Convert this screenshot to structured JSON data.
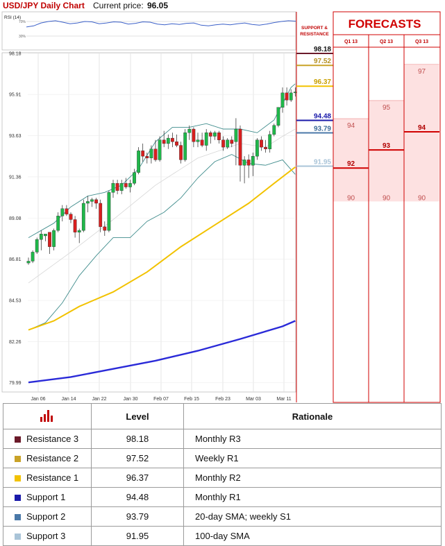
{
  "header": {
    "title": "USD/JPY Daily Chart",
    "price_label": "Current price:",
    "price_value": "96.05"
  },
  "rsi": {
    "label": "RSI (14)",
    "levels": [
      "70%",
      "30%"
    ],
    "values": [
      55,
      58,
      66,
      70,
      72,
      68,
      64,
      66,
      70,
      69,
      64,
      66,
      69,
      68,
      63,
      65,
      69,
      68,
      63,
      61,
      64,
      62,
      65,
      66,
      60,
      58,
      61,
      63,
      61,
      64,
      66,
      62,
      60,
      63,
      67,
      70,
      72,
      71
    ]
  },
  "sr_header": {
    "line1": "SUPPORT &",
    "line2": "RESISTANCE"
  },
  "forecasts": {
    "title": "FORECASTS",
    "quarters": [
      "Q1 13",
      "Q2 13",
      "Q3 13"
    ],
    "items": [
      {
        "quarter": "Q1 13",
        "high": "94",
        "mid": "92",
        "low": "90"
      },
      {
        "quarter": "Q2 13",
        "high": "95",
        "mid": "93",
        "low": "90"
      },
      {
        "quarter": "Q3 13",
        "high": "97",
        "mid": "94",
        "low": "90"
      }
    ]
  },
  "levels": [
    {
      "name": "Resistance 3",
      "value": "98.18",
      "color": "#6b1a2a",
      "rationale": "Monthly R3"
    },
    {
      "name": "Resistance 2",
      "value": "97.52",
      "color": "#c9a227",
      "rationale": "Weekly R1"
    },
    {
      "name": "Resistance 1",
      "value": "96.37",
      "color": "#f2c200",
      "rationale": "Monthly R2"
    },
    {
      "name": "Support 1",
      "value": "94.48",
      "color": "#1a1aaa",
      "rationale": "Monthly R1"
    },
    {
      "name": "Support 2",
      "value": "93.79",
      "color": "#4a78a8",
      "rationale": "20-day SMA; weekly S1"
    },
    {
      "name": "Support 3",
      "value": "91.95",
      "color": "#a9c4d8",
      "rationale": "100-day SMA"
    }
  ],
  "table": {
    "col_level": "Level",
    "col_rationale": "Rationale"
  },
  "chart_data": {
    "type": "candlestick",
    "y_ticks": [
      "98.18",
      "95.91",
      "93.63",
      "91.36",
      "89.08",
      "86.81",
      "84.53",
      "82.26",
      "79.99"
    ],
    "ylim": [
      79.99,
      98.18
    ],
    "x_ticks": [
      "Jan 06",
      "Jan 14",
      "Jan 22",
      "Jan 30",
      "Feb 07",
      "Feb 15",
      "Feb 23",
      "Mar 03",
      "Mar 11"
    ],
    "candles": [
      [
        86.6,
        86.9,
        86.5,
        86.7
      ],
      [
        86.7,
        87.3,
        86.6,
        87.2
      ],
      [
        87.2,
        88.0,
        87.1,
        87.9
      ],
      [
        87.9,
        88.4,
        87.3,
        88.2
      ],
      [
        88.1,
        88.2,
        87.8,
        88.2
      ],
      [
        88.3,
        88.3,
        87.1,
        87.5
      ],
      [
        87.5,
        88.5,
        87.3,
        88.4
      ],
      [
        88.4,
        89.4,
        88.3,
        89.2
      ],
      [
        89.2,
        89.8,
        88.9,
        89.6
      ],
      [
        89.6,
        89.8,
        89.2,
        89.3
      ],
      [
        89.3,
        89.4,
        88.8,
        89.0
      ],
      [
        89.0,
        89.2,
        88.0,
        88.3
      ],
      [
        88.3,
        88.5,
        87.7,
        88.4
      ],
      [
        88.4,
        90.1,
        88.3,
        89.9
      ],
      [
        89.9,
        90.3,
        89.4,
        90.0
      ],
      [
        90.0,
        90.2,
        89.7,
        90.1
      ],
      [
        90.1,
        90.2,
        89.6,
        89.9
      ],
      [
        89.9,
        90.1,
        88.3,
        88.6
      ],
      [
        88.6,
        88.9,
        88.1,
        88.4
      ],
      [
        88.4,
        90.6,
        88.3,
        90.5
      ],
      [
        90.5,
        91.2,
        90.2,
        91.0
      ],
      [
        91.0,
        91.2,
        90.4,
        90.6
      ],
      [
        90.6,
        91.2,
        90.4,
        91.0
      ],
      [
        91.0,
        91.3,
        90.7,
        90.8
      ],
      [
        90.8,
        91.2,
        90.5,
        91.0
      ],
      [
        91.0,
        91.8,
        90.9,
        91.6
      ],
      [
        91.6,
        93.0,
        91.5,
        92.8
      ],
      [
        92.8,
        93.2,
        92.2,
        92.5
      ],
      [
        92.5,
        92.7,
        92.1,
        92.4
      ],
      [
        92.4,
        93.1,
        92.1,
        92.9
      ],
      [
        92.9,
        93.4,
        92.2,
        92.3
      ],
      [
        92.3,
        93.6,
        92.2,
        93.4
      ],
      [
        93.4,
        93.9,
        93.0,
        93.2
      ],
      [
        93.2,
        93.7,
        92.9,
        93.5
      ],
      [
        93.5,
        93.8,
        93.0,
        93.3
      ],
      [
        93.3,
        93.7,
        93.0,
        93.1
      ],
      [
        93.1,
        93.3,
        92.1,
        92.3
      ],
      [
        92.3,
        94.0,
        92.2,
        93.8
      ],
      [
        93.8,
        94.2,
        93.4,
        94.0
      ],
      [
        94.0,
        94.1,
        93.0,
        93.3
      ],
      [
        93.3,
        93.8,
        93.0,
        93.4
      ],
      [
        93.4,
        93.8,
        93.0,
        93.1
      ],
      [
        93.1,
        94.0,
        92.8,
        93.8
      ],
      [
        93.8,
        93.9,
        93.2,
        93.6
      ],
      [
        93.6,
        93.9,
        93.4,
        93.8
      ],
      [
        93.8,
        93.9,
        93.2,
        93.4
      ],
      [
        93.4,
        93.6,
        92.8,
        93.0
      ],
      [
        93.0,
        93.5,
        92.9,
        93.4
      ],
      [
        93.4,
        93.6,
        93.0,
        93.2
      ],
      [
        93.3,
        94.6,
        92.0,
        94.0
      ],
      [
        94.0,
        94.2,
        91.1,
        92.0
      ],
      [
        92.0,
        92.5,
        91.0,
        92.3
      ],
      [
        92.3,
        92.6,
        91.3,
        92.0
      ],
      [
        92.0,
        92.7,
        91.4,
        92.5
      ],
      [
        92.5,
        93.5,
        92.3,
        93.4
      ],
      [
        93.4,
        93.6,
        92.8,
        93.0
      ],
      [
        93.0,
        93.4,
        92.7,
        92.9
      ],
      [
        92.9,
        93.9,
        92.7,
        93.7
      ],
      [
        93.7,
        94.3,
        93.6,
        94.2
      ],
      [
        94.2,
        95.2,
        94.1,
        95.2
      ],
      [
        95.2,
        96.3,
        94.9,
        96.0
      ],
      [
        96.0,
        96.3,
        95.3,
        95.6
      ],
      [
        95.6,
        96.2,
        95.5,
        96.0
      ],
      [
        96.0,
        96.3,
        95.8,
        96.05
      ]
    ],
    "sma_200": [
      [
        0,
        80.0
      ],
      [
        10,
        80.3
      ],
      [
        20,
        80.75
      ],
      [
        30,
        81.2
      ],
      [
        40,
        81.75
      ],
      [
        50,
        82.4
      ],
      [
        60,
        83.1
      ],
      [
        63,
        83.4
      ]
    ],
    "sma_100": [
      [
        0,
        82.9
      ],
      [
        6,
        83.4
      ],
      [
        12,
        84.2
      ],
      [
        20,
        85.0
      ],
      [
        28,
        86.1
      ],
      [
        36,
        87.5
      ],
      [
        44,
        88.7
      ],
      [
        52,
        89.9
      ],
      [
        58,
        91.0
      ],
      [
        63,
        91.9
      ]
    ],
    "bb_upper": [
      [
        0,
        88.0
      ],
      [
        6,
        88.8
      ],
      [
        10,
        89.7
      ],
      [
        14,
        90.3
      ],
      [
        18,
        90.5
      ],
      [
        22,
        90.9
      ],
      [
        26,
        91.8
      ],
      [
        30,
        93.3
      ],
      [
        34,
        94.1
      ],
      [
        38,
        94.1
      ],
      [
        42,
        94.3
      ],
      [
        46,
        94.0
      ],
      [
        50,
        94.0
      ],
      [
        54,
        93.8
      ],
      [
        58,
        94.5
      ],
      [
        62,
        96.3
      ],
      [
        63,
        96.5
      ]
    ],
    "bb_lower": [
      [
        0,
        82.9
      ],
      [
        4,
        83.3
      ],
      [
        8,
        84.4
      ],
      [
        12,
        85.9
      ],
      [
        16,
        87.0
      ],
      [
        20,
        88.0
      ],
      [
        24,
        88.0
      ],
      [
        28,
        88.9
      ],
      [
        32,
        89.4
      ],
      [
        36,
        90.2
      ],
      [
        40,
        91.3
      ],
      [
        44,
        92.2
      ],
      [
        48,
        92.6
      ],
      [
        52,
        92.1
      ],
      [
        56,
        92.0
      ],
      [
        60,
        92.3
      ],
      [
        63,
        91.5
      ]
    ],
    "bb_mid": [
      [
        0,
        85.5
      ],
      [
        10,
        87.2
      ],
      [
        20,
        89.0
      ],
      [
        30,
        90.9
      ],
      [
        40,
        92.4
      ],
      [
        50,
        93.2
      ],
      [
        56,
        93.0
      ],
      [
        60,
        93.6
      ],
      [
        63,
        94.0
      ]
    ]
  }
}
